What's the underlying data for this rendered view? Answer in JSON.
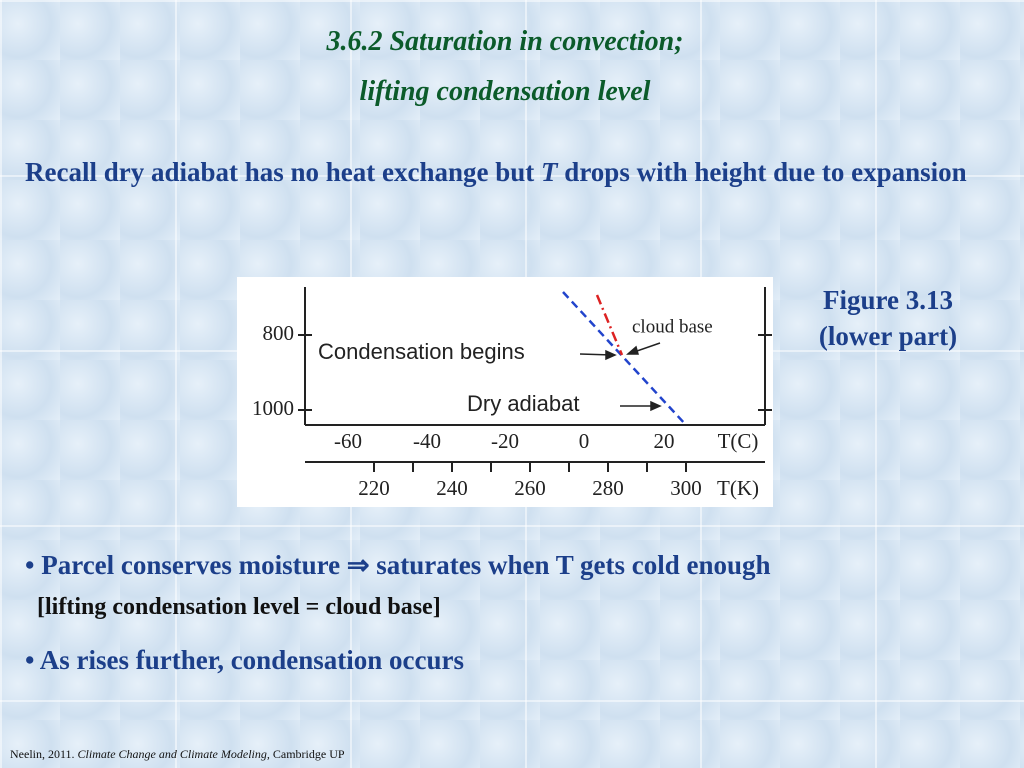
{
  "title": {
    "line1": "3.6.2 Saturation in convection;",
    "line2": "lifting condensation level"
  },
  "intro": {
    "before": "Recall dry adiabat has no heat exchange but ",
    "italic": "T",
    "after": " drops with height due to expansion"
  },
  "figure": {
    "pressure_labels": [
      "800",
      "1000"
    ],
    "celsius_labels": [
      "-60",
      "-40",
      "-20",
      "0",
      "20"
    ],
    "celsius_unit": "T(C)",
    "kelvin_labels": [
      "220",
      "240",
      "260",
      "280",
      "300"
    ],
    "kelvin_unit": "T(K)",
    "condensation_label": "Condensation begins",
    "dry_label": "Dry adiabat",
    "cloud_label": "cloud base"
  },
  "caption": {
    "line1": "Figure 3.13",
    "line2": "(lower part)"
  },
  "bullets": [
    {
      "text": "Parcel conserves moisture ⇒ saturates when T gets cold enough",
      "note": "[lifting condensation level = cloud base]"
    },
    {
      "text": "As rises further, condensation occurs"
    }
  ],
  "footer": {
    "before": "Neelin, 2011. ",
    "italic": "Climate Change and Climate Modeling,",
    "after": " Cambridge UP"
  }
}
